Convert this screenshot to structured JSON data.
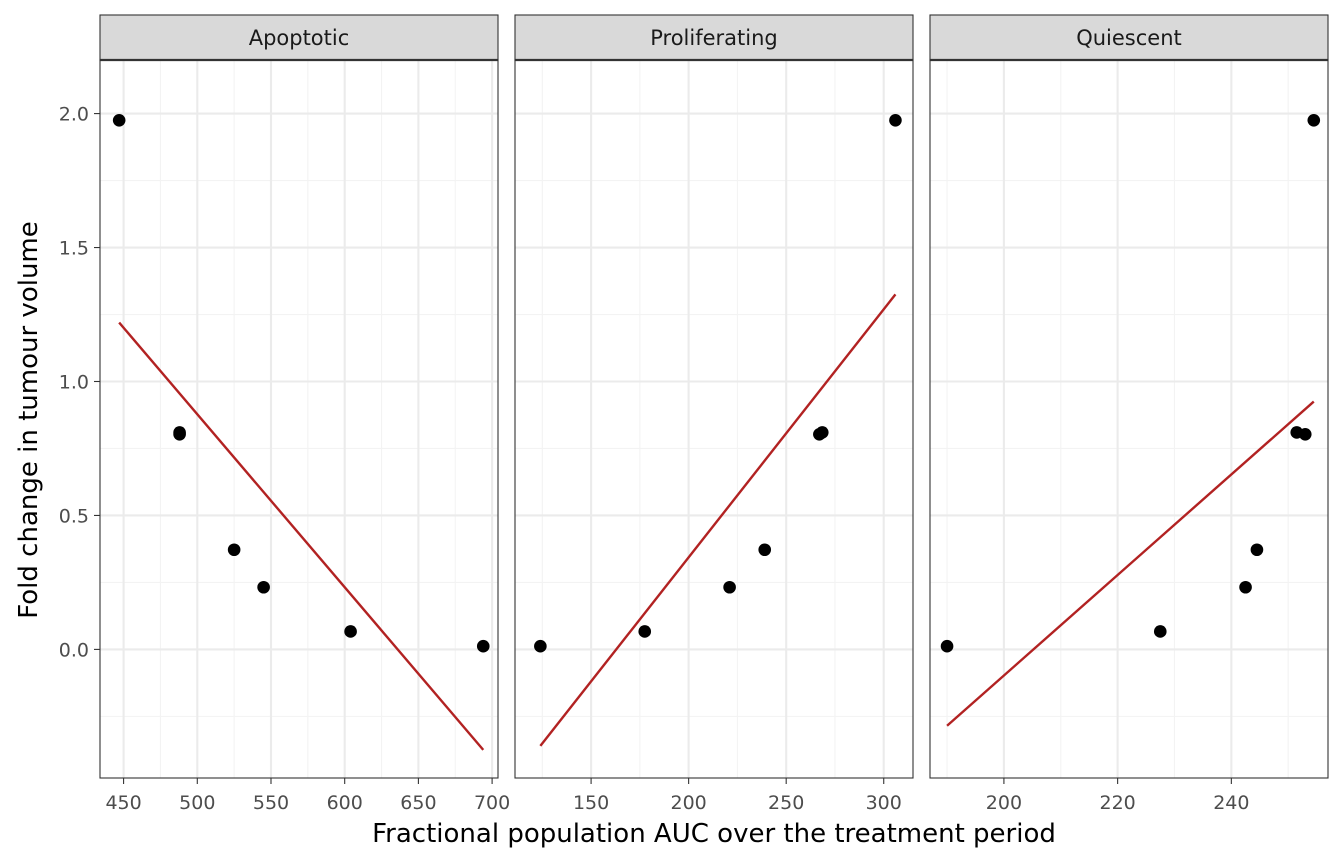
{
  "chart_data": {
    "type": "scatter",
    "facet_layout": "1x3",
    "xlabel": "Fractional population AUC over the treatment period",
    "ylabel": "Fold change in tumour volume",
    "ylim": [
      -0.48,
      2.2
    ],
    "y_ticks": [
      0,
      0.5,
      1,
      1.5,
      2
    ],
    "y_tick_labels": [
      "0.0",
      "0.5",
      "1.0",
      "1.5",
      "2.0"
    ],
    "point_color": "#000000",
    "fit_color": "#b22222",
    "grid": true,
    "legend": "none",
    "panels": [
      {
        "label": "Apoptotic",
        "xlim": [
          434,
          704
        ],
        "x_ticks": [
          450,
          500,
          550,
          600,
          650,
          700
        ],
        "x_tick_labels": [
          "450",
          "500",
          "550",
          "600",
          "650",
          "700"
        ],
        "points": [
          {
            "x": 447,
            "y": 1.975
          },
          {
            "x": 488,
            "y": 0.81
          },
          {
            "x": 488,
            "y": 0.803
          },
          {
            "x": 525,
            "y": 0.372
          },
          {
            "x": 545,
            "y": 0.232
          },
          {
            "x": 604,
            "y": 0.067
          },
          {
            "x": 694,
            "y": 0.012
          }
        ],
        "fit": [
          {
            "x": 447,
            "y": 1.22
          },
          {
            "x": 694,
            "y": -0.375
          }
        ]
      },
      {
        "label": "Proliferating",
        "xlim": [
          111,
          315
        ],
        "x_ticks": [
          150,
          200,
          250,
          300
        ],
        "x_tick_labels": [
          "150",
          "200",
          "250",
          "300"
        ],
        "points": [
          {
            "x": 124,
            "y": 0.012
          },
          {
            "x": 177.5,
            "y": 0.067
          },
          {
            "x": 221,
            "y": 0.232
          },
          {
            "x": 239,
            "y": 0.372
          },
          {
            "x": 267,
            "y": 0.803
          },
          {
            "x": 268.5,
            "y": 0.81
          },
          {
            "x": 306,
            "y": 1.975
          }
        ],
        "fit": [
          {
            "x": 124,
            "y": -0.36
          },
          {
            "x": 306,
            "y": 1.325
          }
        ]
      },
      {
        "label": "Quiescent",
        "xlim": [
          187,
          257
        ],
        "x_ticks": [
          200,
          220,
          240
        ],
        "x_tick_labels": [
          "200",
          "220",
          "240"
        ],
        "points": [
          {
            "x": 190,
            "y": 0.012
          },
          {
            "x": 227.5,
            "y": 0.067
          },
          {
            "x": 242.5,
            "y": 0.232
          },
          {
            "x": 244.5,
            "y": 0.372
          },
          {
            "x": 251.5,
            "y": 0.81
          },
          {
            "x": 253,
            "y": 0.803
          },
          {
            "x": 254.5,
            "y": 1.975
          }
        ],
        "fit": [
          {
            "x": 190,
            "y": -0.285
          },
          {
            "x": 254.5,
            "y": 0.925
          }
        ]
      }
    ]
  }
}
